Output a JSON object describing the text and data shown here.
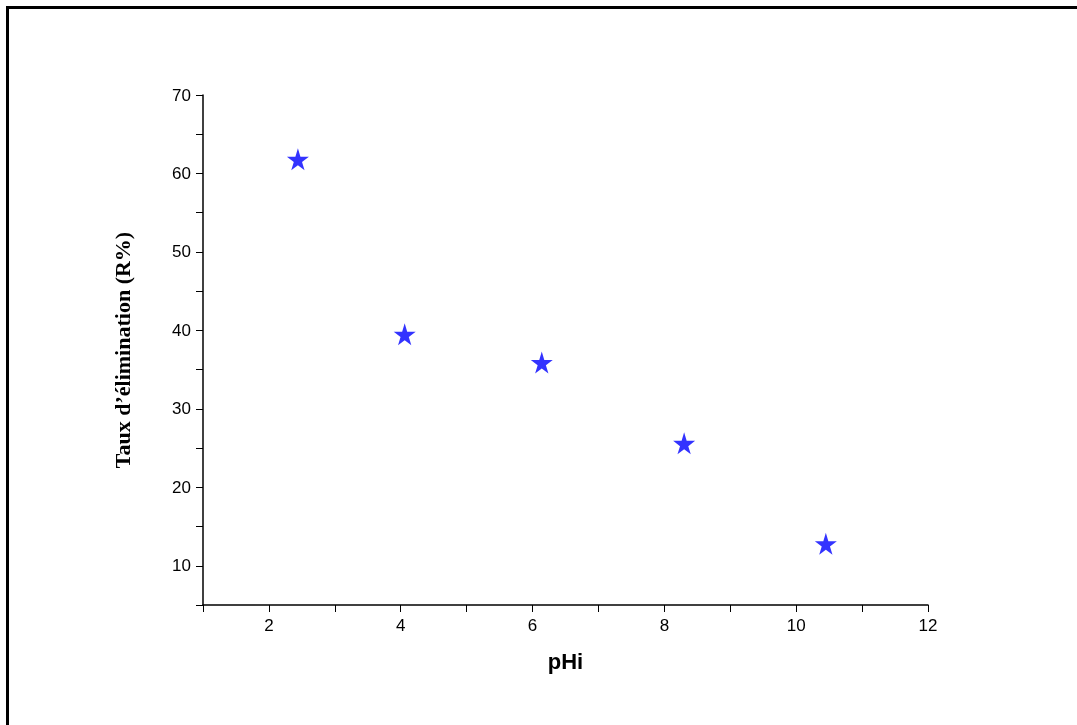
{
  "chart_data": {
    "type": "scatter",
    "xlabel": "pHi",
    "ylabel": "Taux d’élimination (R%)",
    "x": [
      2.44,
      4.06,
      6.14,
      8.3,
      10.45
    ],
    "series": [
      {
        "color": "#0000ff",
        "values": [
          61.8,
          39.5,
          35.9,
          25.6,
          12.8
        ]
      }
    ],
    "marker": "star",
    "grid": false,
    "xlim": [
      1,
      12
    ],
    "xticks": [
      {
        "value": 1,
        "label": null
      },
      2,
      {
        "value": 3,
        "label": null
      },
      4,
      {
        "value": 5,
        "label": null
      },
      6,
      {
        "value": 7,
        "label": null
      },
      8,
      {
        "value": 9,
        "label": null
      },
      10,
      {
        "value": 11,
        "label": null
      },
      12
    ],
    "ylim": [
      5,
      70
    ],
    "yticks": [
      {
        "value": 5,
        "label": null
      },
      10,
      {
        "value": 15,
        "label": null
      },
      20,
      {
        "value": 25,
        "label": null
      },
      30,
      {
        "value": 35,
        "label": null
      },
      40,
      {
        "value": 45,
        "label": null
      },
      50,
      {
        "value": 55,
        "label": null
      },
      60,
      {
        "value": 65,
        "label": null
      },
      70
    ]
  }
}
